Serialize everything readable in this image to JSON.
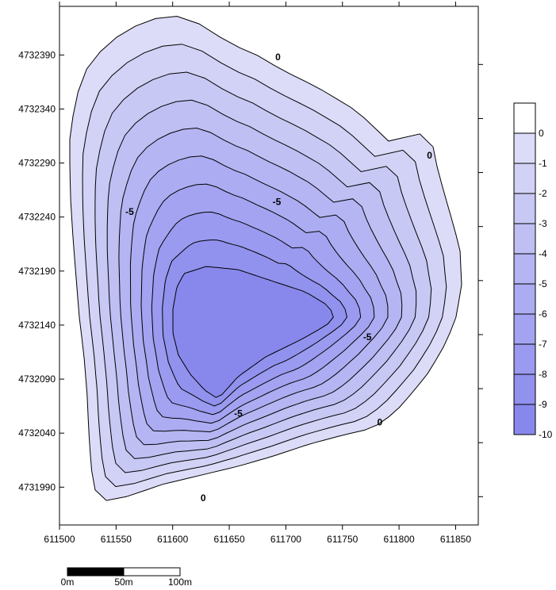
{
  "chart_data": {
    "type": "contour",
    "title": "",
    "xlabel": "",
    "ylabel": "",
    "x_ticks": [
      611500,
      611550,
      611600,
      611650,
      611700,
      611750,
      611800,
      611850
    ],
    "y_ticks": [
      4731990,
      4732040,
      4732090,
      4732140,
      4732190,
      4732240,
      4732290,
      4732340,
      4732390
    ],
    "xlim": [
      611500,
      611870
    ],
    "ylim": [
      4731955,
      4732435
    ],
    "levels": [
      0,
      -1,
      -2,
      -3,
      -4,
      -5,
      -6,
      -7,
      -8,
      -9,
      -10
    ],
    "level_labels": [
      "0",
      "-1",
      "-2",
      "-3",
      "-4",
      "-5",
      "-6",
      "-7",
      "-8",
      "-9",
      "-10"
    ],
    "fill_colors": [
      "#ffffff",
      "#dcdcf8",
      "#d2d2f6",
      "#c8c8f5",
      "#bfbff4",
      "#b5b5f3",
      "#acacf2",
      "#a3a3f1",
      "#9a9af0",
      "#9191ee",
      "#8888ec"
    ],
    "center": {
      "x": 611645,
      "y": 4732150,
      "min_value": -10
    },
    "contour_labels": [
      {
        "text": "0",
        "x": 611693,
        "y": 4732388
      },
      {
        "text": "0",
        "x": 611827,
        "y": 4732297
      },
      {
        "text": "0",
        "x": 611783,
        "y": 4732050
      },
      {
        "text": "0",
        "x": 611627,
        "y": 4731980
      },
      {
        "text": "-5",
        "x": 611562,
        "y": 4732245
      },
      {
        "text": "-5",
        "x": 611692,
        "y": 4732254
      },
      {
        "text": "-5",
        "x": 611772,
        "y": 4732129
      },
      {
        "text": "-5",
        "x": 611658,
        "y": 4732058
      }
    ]
  },
  "scale_bar": {
    "labels": [
      "0m",
      "50m",
      "100m"
    ]
  }
}
